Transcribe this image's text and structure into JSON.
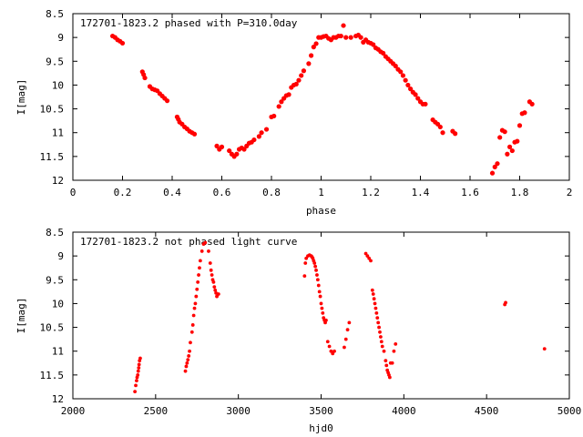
{
  "colors": {
    "points": "#ff0000",
    "axes": "#000000",
    "background": "#ffffff"
  },
  "chart_data": [
    {
      "type": "scatter",
      "title": "172701-1823.2 phased with P=310.0day",
      "xlabel": "phase",
      "ylabel": "I[mag]",
      "xlim": [
        0,
        2
      ],
      "ylim": [
        8.5,
        12
      ],
      "y_inverted": true,
      "grid": false,
      "x_ticks": [
        0,
        0.2,
        0.4,
        0.6,
        0.8,
        1,
        1.2,
        1.4,
        1.6,
        1.8,
        2
      ],
      "x_tick_labels": [
        "0",
        "0.2",
        "0.4",
        "0.6",
        "0.8",
        "1",
        "1.2",
        "1.4",
        "1.6",
        "1.8",
        "2"
      ],
      "y_ticks": [
        8.5,
        9,
        9.5,
        10,
        10.5,
        11,
        11.5,
        12
      ],
      "y_tick_labels": [
        "8.5",
        "9",
        "9.5",
        "10",
        "10.5",
        "11",
        "11.5",
        "12"
      ],
      "x": [
        0.16,
        0.17,
        0.18,
        0.19,
        0.2,
        0.28,
        0.285,
        0.29,
        0.31,
        0.32,
        0.33,
        0.34,
        0.35,
        0.36,
        0.37,
        0.38,
        0.42,
        0.425,
        0.43,
        0.44,
        0.45,
        0.46,
        0.47,
        0.48,
        0.49,
        0.58,
        0.59,
        0.6,
        0.63,
        0.64,
        0.65,
        0.66,
        0.67,
        0.68,
        0.69,
        0.7,
        0.71,
        0.72,
        0.73,
        0.75,
        0.76,
        0.78,
        0.8,
        0.81,
        0.83,
        0.84,
        0.85,
        0.86,
        0.87,
        0.88,
        0.89,
        0.9,
        0.91,
        0.92,
        0.93,
        0.95,
        0.96,
        0.97,
        0.98,
        0.99,
        1.0,
        1.01,
        1.02,
        1.03,
        1.04,
        1.05,
        1.06,
        1.07,
        1.08,
        1.09,
        1.1,
        1.12,
        1.14,
        1.15,
        1.16,
        1.17,
        1.18,
        1.19,
        1.2,
        1.21,
        1.22,
        1.23,
        1.24,
        1.25,
        1.26,
        1.27,
        1.28,
        1.29,
        1.3,
        1.31,
        1.32,
        1.33,
        1.34,
        1.35,
        1.36,
        1.37,
        1.38,
        1.39,
        1.4,
        1.41,
        1.42,
        1.45,
        1.46,
        1.47,
        1.48,
        1.49,
        1.53,
        1.54,
        1.69,
        1.7,
        1.71,
        1.72,
        1.73,
        1.74,
        1.75,
        1.76,
        1.77,
        1.78,
        1.79,
        1.8,
        1.81,
        1.82,
        1.84,
        1.85
      ],
      "y": [
        8.97,
        9.0,
        9.05,
        9.08,
        9.12,
        9.72,
        9.78,
        9.85,
        10.03,
        10.08,
        10.1,
        10.12,
        10.18,
        10.23,
        10.28,
        10.33,
        10.67,
        10.72,
        10.78,
        10.82,
        10.88,
        10.92,
        10.97,
        11.0,
        11.03,
        11.28,
        11.35,
        11.3,
        11.38,
        11.45,
        11.5,
        11.45,
        11.35,
        11.32,
        11.35,
        11.28,
        11.22,
        11.2,
        11.15,
        11.08,
        11.0,
        10.93,
        10.67,
        10.65,
        10.45,
        10.35,
        10.28,
        10.22,
        10.2,
        10.05,
        10.0,
        9.98,
        9.9,
        9.8,
        9.7,
        9.55,
        9.38,
        9.2,
        9.13,
        9.0,
        9.0,
        8.98,
        8.97,
        9.02,
        9.05,
        9.0,
        9.0,
        8.97,
        8.97,
        8.75,
        9.0,
        9.0,
        8.97,
        8.95,
        9.0,
        9.1,
        9.05,
        9.1,
        9.12,
        9.15,
        9.22,
        9.25,
        9.3,
        9.33,
        9.4,
        9.45,
        9.5,
        9.55,
        9.6,
        9.67,
        9.72,
        9.8,
        9.9,
        10.0,
        10.08,
        10.15,
        10.2,
        10.28,
        10.35,
        10.4,
        10.4,
        10.73,
        10.78,
        10.82,
        10.88,
        11.0,
        10.97,
        11.02,
        11.85,
        11.72,
        11.65,
        11.1,
        10.95,
        10.98,
        11.45,
        11.3,
        11.38,
        11.2,
        11.18,
        10.85,
        10.6,
        10.58,
        10.35,
        10.4
      ]
    },
    {
      "type": "scatter",
      "title": "172701-1823.2 not phased light curve",
      "xlabel": "hjd0",
      "ylabel": "I[mag]",
      "xlim": [
        2000,
        5000
      ],
      "ylim": [
        8.5,
        12
      ],
      "y_inverted": true,
      "grid": false,
      "x_ticks": [
        2000,
        2500,
        3000,
        3500,
        4000,
        4500,
        5000
      ],
      "x_tick_labels": [
        "2000",
        "2500",
        "3000",
        "3500",
        "4000",
        "4500",
        "5000"
      ],
      "y_ticks": [
        8.5,
        9,
        9.5,
        10,
        10.5,
        11,
        11.5,
        12
      ],
      "y_tick_labels": [
        "8.5",
        "9",
        "9.5",
        "10",
        "10.5",
        "11",
        "11.5",
        "12"
      ],
      "x": [
        2375,
        2380,
        2385,
        2388,
        2392,
        2395,
        2398,
        2400,
        2403,
        2407,
        2680,
        2685,
        2690,
        2695,
        2700,
        2705,
        2710,
        2720,
        2725,
        2730,
        2735,
        2740,
        2745,
        2750,
        2755,
        2760,
        2765,
        2770,
        2780,
        2790,
        2800,
        2820,
        2830,
        2835,
        2840,
        2845,
        2850,
        2855,
        2860,
        2865,
        2870,
        2880,
        3400,
        3405,
        3410,
        3420,
        3430,
        3440,
        3445,
        3450,
        3455,
        3460,
        3465,
        3470,
        3475,
        3480,
        3485,
        3490,
        3495,
        3500,
        3505,
        3510,
        3515,
        3520,
        3525,
        3530,
        3540,
        3550,
        3560,
        3570,
        3580,
        3640,
        3650,
        3660,
        3670,
        3770,
        3780,
        3790,
        3800,
        3810,
        3815,
        3820,
        3825,
        3830,
        3835,
        3840,
        3845,
        3850,
        3855,
        3860,
        3865,
        3870,
        3880,
        3890,
        3895,
        3900,
        3905,
        3910,
        3915,
        3920,
        3930,
        3940,
        3950,
        4610,
        4615,
        4850
      ],
      "y": [
        11.85,
        11.72,
        11.62,
        11.55,
        11.5,
        11.42,
        11.35,
        11.28,
        11.2,
        11.15,
        11.42,
        11.32,
        11.25,
        11.18,
        11.1,
        11.0,
        10.82,
        10.6,
        10.45,
        10.25,
        10.1,
        10.0,
        9.85,
        9.7,
        9.55,
        9.4,
        9.25,
        9.1,
        8.9,
        8.75,
        8.72,
        8.9,
        9.15,
        9.3,
        9.4,
        9.5,
        9.55,
        9.65,
        9.72,
        9.78,
        9.85,
        9.8,
        9.42,
        9.15,
        9.05,
        9.0,
        8.98,
        9.0,
        9.02,
        9.05,
        9.1,
        9.15,
        9.22,
        9.3,
        9.4,
        9.5,
        9.62,
        9.75,
        9.85,
        10.0,
        10.1,
        10.2,
        10.3,
        10.35,
        10.4,
        10.35,
        10.8,
        10.9,
        11.0,
        11.05,
        11.0,
        10.92,
        10.75,
        10.55,
        10.4,
        8.95,
        9.0,
        9.05,
        9.1,
        9.72,
        9.8,
        9.9,
        10.0,
        10.1,
        10.2,
        10.3,
        10.4,
        10.5,
        10.6,
        10.7,
        10.8,
        10.9,
        11.0,
        11.2,
        11.3,
        11.4,
        11.45,
        11.5,
        11.55,
        11.25,
        11.25,
        11.0,
        10.85,
        10.02,
        9.98,
        10.95
      ]
    }
  ]
}
